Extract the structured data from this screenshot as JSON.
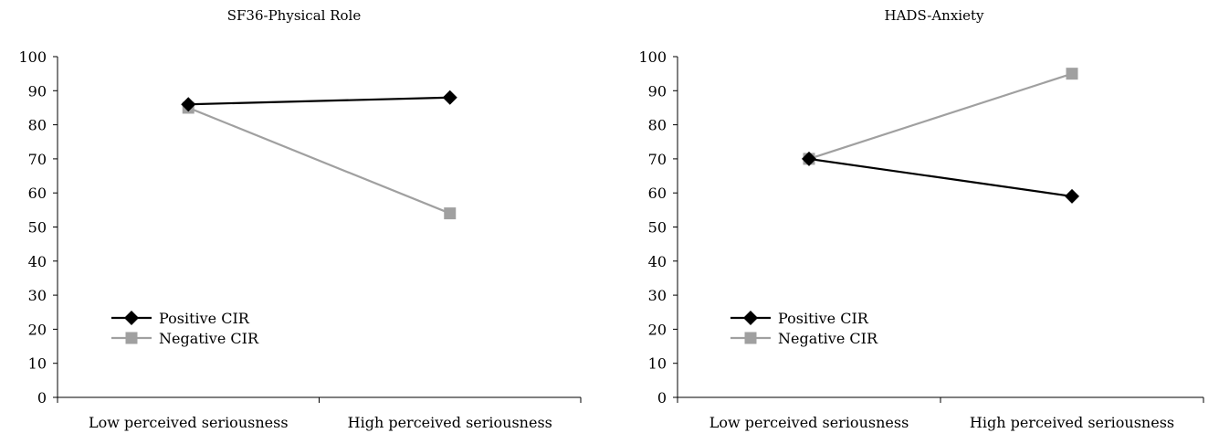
{
  "chart_data": [
    {
      "type": "line",
      "title": "SF36-Physical Role",
      "xlabel": "",
      "ylabel": "",
      "categories": [
        "Low perceived seriousness",
        "High perceived seriousness"
      ],
      "yticks": [
        "0",
        "10",
        "20",
        "30",
        "40",
        "50",
        "60",
        "70",
        "80",
        "90",
        "100"
      ],
      "ylim": [
        0,
        100
      ],
      "grid": false,
      "legend_position": "lower-left",
      "series": [
        {
          "name": "Positive CIR",
          "values": [
            86,
            88
          ],
          "color": "#000000",
          "marker": "diamond"
        },
        {
          "name": "Negative CIR",
          "values": [
            85,
            54
          ],
          "color": "#a0a0a0",
          "marker": "square"
        }
      ]
    },
    {
      "type": "line",
      "title": "HADS-Anxiety",
      "xlabel": "",
      "ylabel": "",
      "categories": [
        "Low perceived seriousness",
        "High perceived seriousness"
      ],
      "yticks": [
        "0",
        "10",
        "20",
        "30",
        "40",
        "50",
        "60",
        "70",
        "80",
        "90",
        "100"
      ],
      "ylim": [
        0,
        100
      ],
      "grid": false,
      "legend_position": "lower-left",
      "series": [
        {
          "name": "Positive CIR",
          "values": [
            70,
            59
          ],
          "color": "#000000",
          "marker": "diamond"
        },
        {
          "name": "Negative CIR",
          "values": [
            70,
            95
          ],
          "color": "#a0a0a0",
          "marker": "square"
        }
      ]
    }
  ]
}
